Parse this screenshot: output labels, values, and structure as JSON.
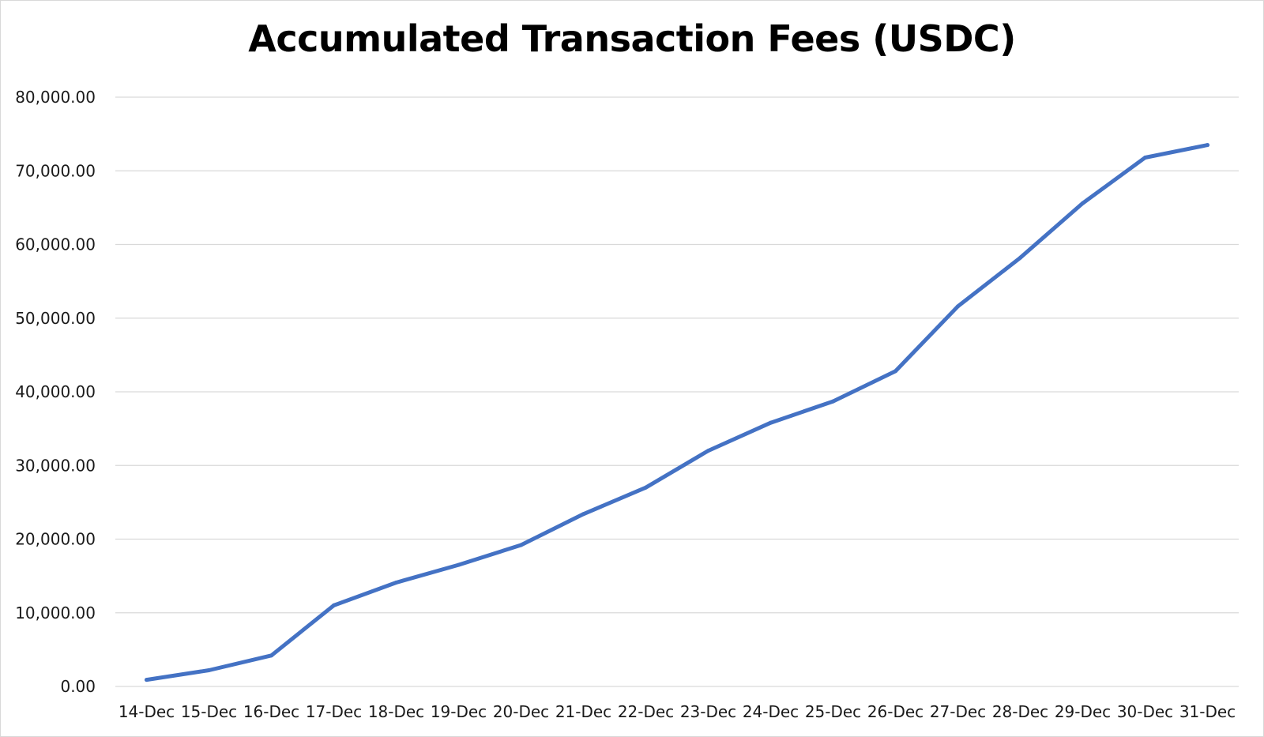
{
  "chart_data": {
    "type": "line",
    "title": "Accumulated Transaction Fees (USDC)",
    "xlabel": "",
    "ylabel": "",
    "categories": [
      "14-Dec",
      "15-Dec",
      "16-Dec",
      "17-Dec",
      "18-Dec",
      "19-Dec",
      "20-Dec",
      "21-Dec",
      "22-Dec",
      "23-Dec",
      "24-Dec",
      "25-Dec",
      "26-Dec",
      "27-Dec",
      "28-Dec",
      "29-Dec",
      "30-Dec",
      "31-Dec"
    ],
    "series": [
      {
        "color": "#4472c4",
        "values": [
          900,
          2200,
          4200,
          11000,
          14100,
          16500,
          19200,
          23400,
          27000,
          32000,
          35800,
          38700,
          42800,
          51600,
          58200,
          65600,
          71800,
          73500
        ]
      }
    ],
    "y_ticks": [
      "0.00",
      "10,000.00",
      "20,000.00",
      "30,000.00",
      "40,000.00",
      "50,000.00",
      "60,000.00",
      "70,000.00",
      "80,000.00"
    ],
    "ylim": [
      0,
      80000
    ],
    "grid": true,
    "legend": "none",
    "colors": {
      "line": "#4472c4",
      "grid": "#d9d9d9",
      "text": "#1a1a1a"
    }
  }
}
